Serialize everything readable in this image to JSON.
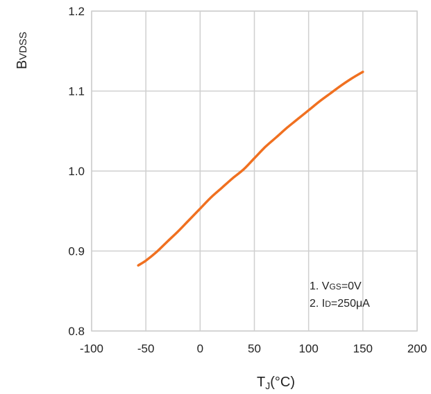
{
  "chart_data": {
    "type": "line",
    "title": "",
    "ylabel": {
      "main": "B",
      "sub": "VDSS"
    },
    "xlabel": {
      "main": "T",
      "sub": "J",
      "rest": "(°C)"
    },
    "xlim": [
      -100,
      200
    ],
    "ylim": [
      0.8,
      1.2
    ],
    "x_ticks": [
      -100,
      -50,
      0,
      50,
      100,
      150,
      200
    ],
    "y_ticks": [
      0.8,
      0.9,
      1.0,
      1.1,
      1.2
    ],
    "x_tick_labels": [
      "-100",
      "-50",
      "0",
      "50",
      "100",
      "150",
      "200"
    ],
    "y_tick_labels": [
      "0.8",
      "0.9",
      "1.0",
      "1.1",
      "1.2"
    ],
    "grid": true,
    "series": [
      {
        "color": "#f07020",
        "x": [
          -57,
          -50,
          -40,
          -30,
          -20,
          -10,
          0,
          10,
          20,
          30,
          40,
          50,
          60,
          70,
          80,
          90,
          100,
          110,
          120,
          130,
          140,
          150
        ],
        "y": [
          0.882,
          0.888,
          0.899,
          0.912,
          0.925,
          0.939,
          0.953,
          0.967,
          0.979,
          0.991,
          1.002,
          1.016,
          1.03,
          1.042,
          1.054,
          1.065,
          1.076,
          1.087,
          1.097,
          1.107,
          1.116,
          1.124
        ]
      }
    ],
    "annotations": [
      {
        "num": "1. ",
        "main": "V",
        "sub": "GS",
        "rest": "=0V"
      },
      {
        "num": "2. ",
        "main": "I",
        "sub": "D",
        "rest": "=250μA"
      }
    ]
  }
}
